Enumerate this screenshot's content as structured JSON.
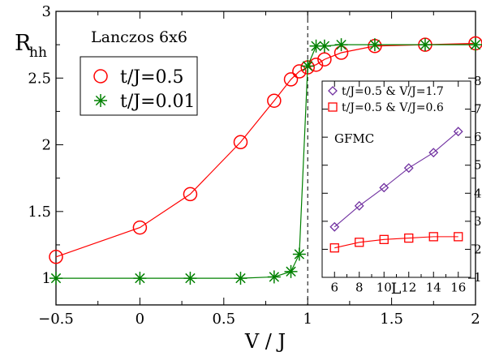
{
  "chart_data": [
    {
      "type": "line",
      "ylabel_main": "R",
      "ylabel_sub": "hh",
      "xlabel": "V / J",
      "annotation": "Lanczos 6x6",
      "xlim": [
        -0.5,
        2.0
      ],
      "ylim": [
        0.8,
        3.0
      ],
      "x_ticks": [
        -0.5,
        0,
        0.5,
        1,
        1.5,
        2
      ],
      "x_tick_labels": [
        "−0.5",
        "0",
        "0.5",
        "1",
        "1.5",
        "2"
      ],
      "y_ticks": [
        1,
        1.5,
        2,
        2.5,
        3
      ],
      "y_tick_labels": [
        "1",
        "1.5",
        "2",
        "2.5",
        "3"
      ],
      "reference_line_x": 1.0,
      "legend_position": "upper-left",
      "series": [
        {
          "name": "t/J=0.5",
          "color": "#ff0000",
          "marker": "circle",
          "x": [
            -0.5,
            0.0,
            0.3,
            0.6,
            0.8,
            0.9,
            0.95,
            1.0,
            1.05,
            1.1,
            1.2,
            1.4,
            1.7,
            2.0
          ],
          "y": [
            1.16,
            1.38,
            1.63,
            2.02,
            2.33,
            2.49,
            2.55,
            2.58,
            2.6,
            2.64,
            2.69,
            2.74,
            2.75,
            2.76
          ]
        },
        {
          "name": "t/J=0.01",
          "color": "#008000",
          "marker": "star",
          "x": [
            -0.5,
            0.0,
            0.3,
            0.6,
            0.8,
            0.9,
            0.95,
            1.0,
            1.05,
            1.1,
            1.2,
            1.4,
            1.7,
            2.0
          ],
          "y": [
            1.0,
            1.0,
            1.0,
            1.0,
            1.01,
            1.05,
            1.18,
            2.59,
            2.74,
            2.74,
            2.75,
            2.75,
            2.75,
            2.75
          ]
        }
      ]
    },
    {
      "type": "line",
      "xlabel": "L",
      "annotation": "GFMC",
      "xlim": [
        5,
        17
      ],
      "ylim": [
        1,
        8
      ],
      "x_ticks": [
        6,
        8,
        10,
        12,
        14,
        16
      ],
      "x_tick_labels": [
        "6",
        "8",
        "10",
        "12",
        "14",
        "16"
      ],
      "y_ticks": [
        1,
        2,
        3,
        4,
        5,
        6,
        7,
        8
      ],
      "y_tick_labels": [
        "1",
        "2",
        "3",
        "4",
        "5",
        "6",
        "7",
        "8"
      ],
      "legend_position": "top",
      "series": [
        {
          "name": "t/J=0.5 & V/J=1.7",
          "color": "#7030a0",
          "marker": "diamond",
          "x": [
            6,
            8,
            10,
            12,
            14,
            16
          ],
          "y": [
            2.8,
            3.55,
            4.2,
            4.9,
            5.45,
            6.2
          ]
        },
        {
          "name": "t/J=0.5 & V/J=0.6",
          "color": "#ff0000",
          "marker": "square",
          "x": [
            6,
            8,
            10,
            12,
            14,
            16
          ],
          "y": [
            2.05,
            2.25,
            2.35,
            2.4,
            2.45,
            2.45
          ]
        }
      ]
    }
  ]
}
